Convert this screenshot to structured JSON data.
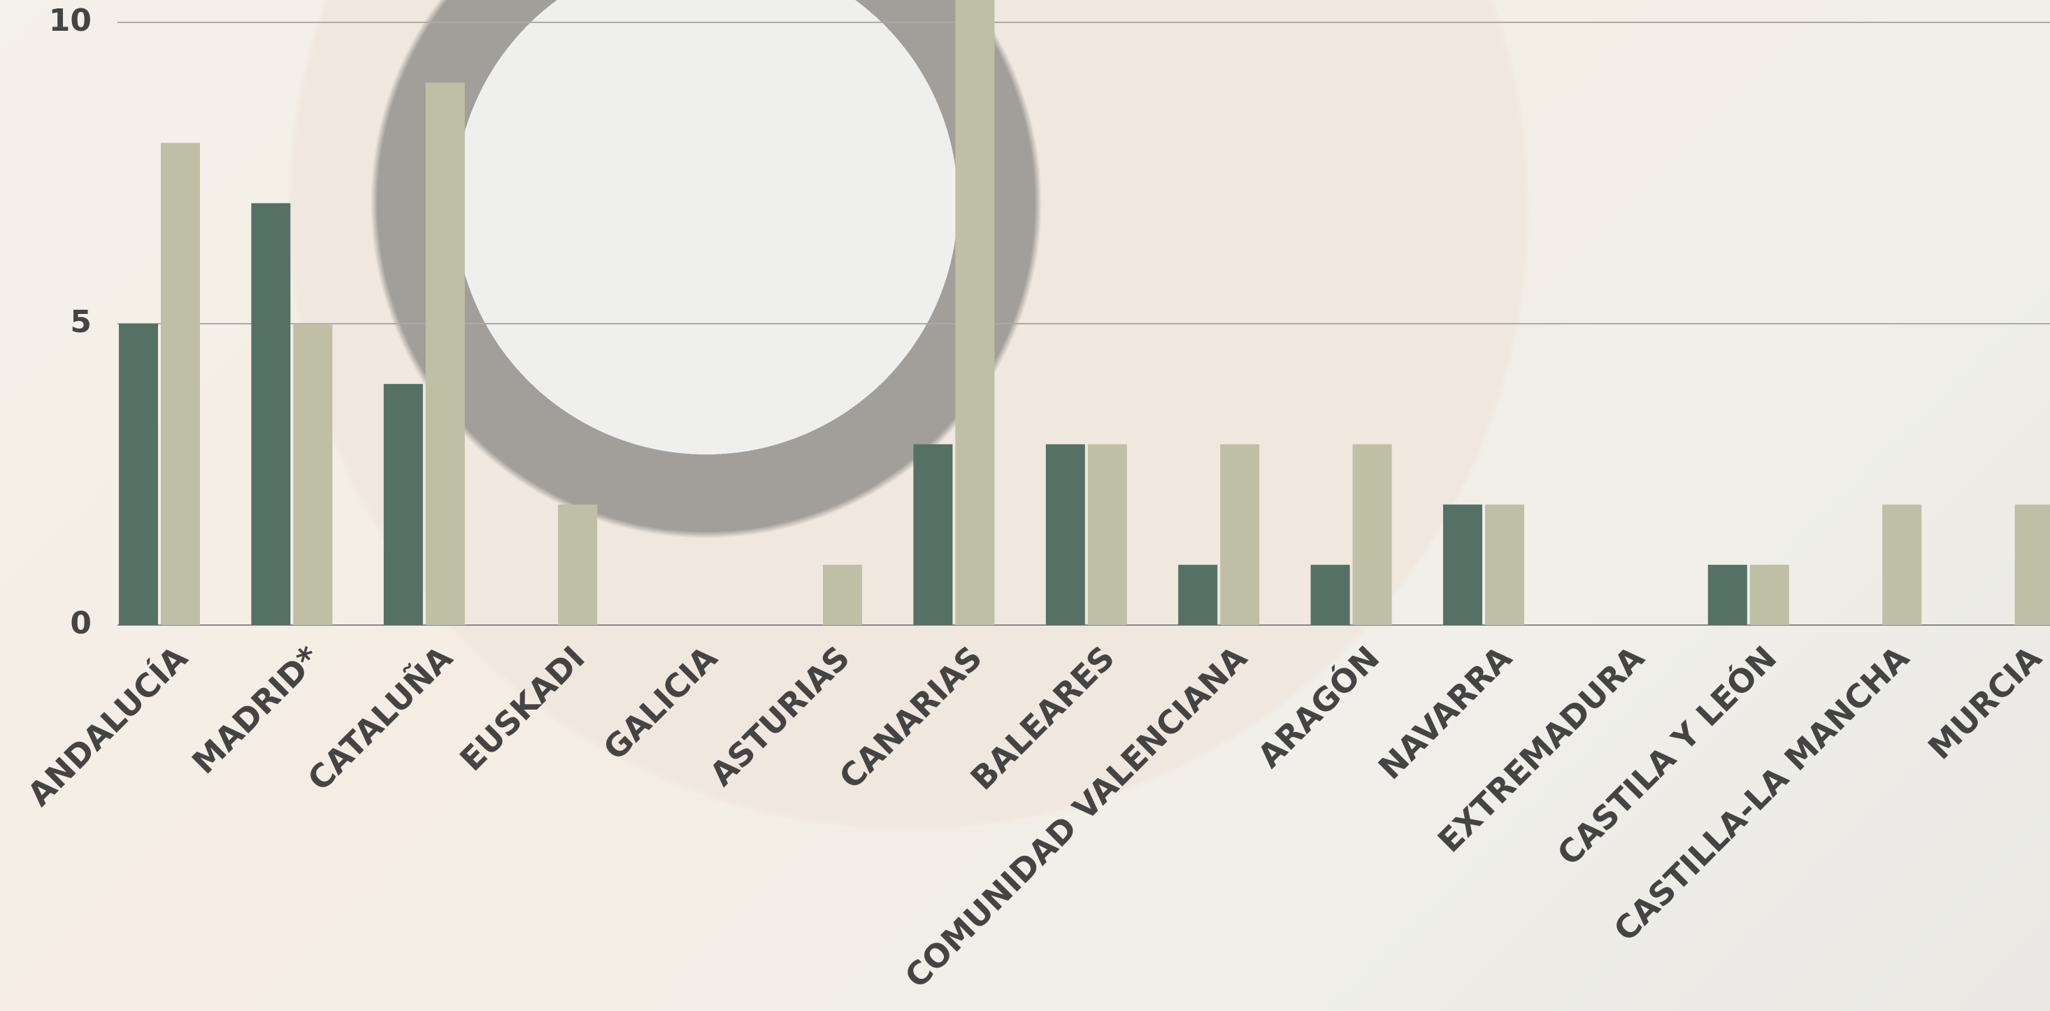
{
  "chart_data": {
    "type": "bar",
    "categories": [
      "ANDALUCÍA",
      "MADRID*",
      "CATALUÑA",
      "EUSKADI",
      "GALICIA",
      "ASTURIAS",
      "CANARIAS",
      "BALEARES",
      "COMUNIDAD VALENCIANA",
      "ARAGÓN",
      "NAVARRA",
      "EXTREMADURA",
      "CASTILA Y LEÓN",
      "CASTILLA-LA MANCHA",
      "MURCIA"
    ],
    "series": [
      {
        "color": "#557065",
        "values": [
          5,
          7,
          4,
          0,
          0,
          0,
          3,
          3,
          1,
          1,
          2,
          0,
          1,
          0,
          0
        ]
      },
      {
        "color": "#bfbfa6",
        "values": [
          8,
          5,
          9,
          2,
          0,
          1,
          11,
          3,
          3,
          3,
          2,
          0,
          1,
          2,
          2
        ]
      }
    ],
    "ylim": [
      0,
      10
    ],
    "yticks": [
      0,
      5,
      10
    ],
    "grid": true
  }
}
